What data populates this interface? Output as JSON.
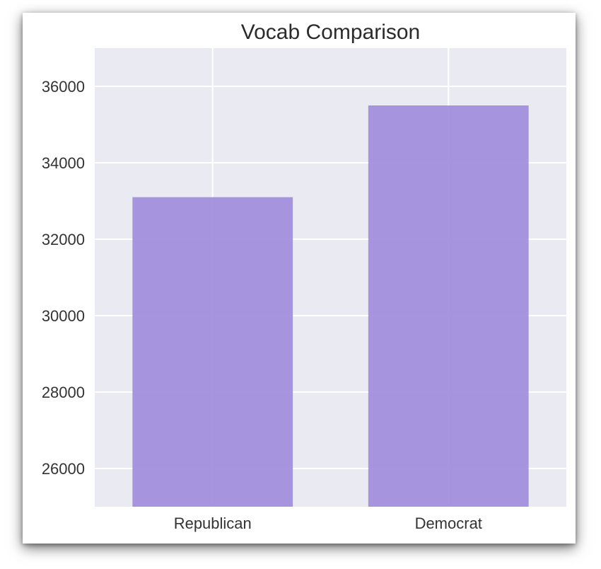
{
  "chart_data": {
    "type": "bar",
    "title": "Vocab Comparison",
    "xlabel": "",
    "ylabel": "",
    "categories": [
      "Republican",
      "Democrat"
    ],
    "values": [
      33100,
      35500
    ],
    "ylim": [
      25000,
      37000
    ],
    "yticks": [
      26000,
      28000,
      30000,
      32000,
      34000,
      36000
    ],
    "grid": true,
    "bar_color": "#9f8ddc",
    "plot_background": "#eaeaf2",
    "grid_color": "#ffffff"
  }
}
